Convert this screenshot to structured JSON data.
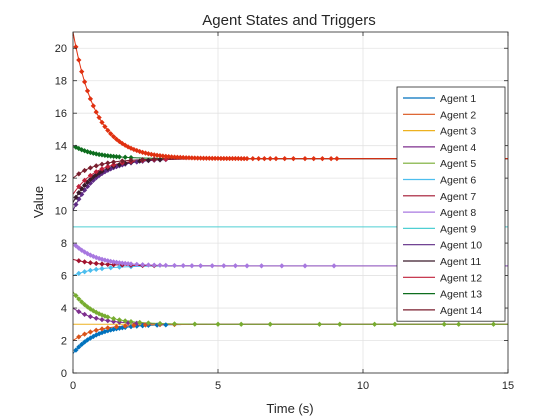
{
  "chart_data": {
    "type": "line",
    "title": "Agent States and Triggers",
    "xlabel": "Time (s)",
    "ylabel": "Value",
    "xlim": [
      0,
      15
    ],
    "ylim": [
      0,
      21
    ],
    "xticks": [
      "0",
      "5",
      "10",
      "15"
    ],
    "xtick_values": [
      0,
      5,
      10,
      15
    ],
    "yticks": [
      "0",
      "2",
      "4",
      "6",
      "8",
      "10",
      "12",
      "14",
      "16",
      "18",
      "20"
    ],
    "ytick_values": [
      0,
      2,
      4,
      6,
      8,
      10,
      12,
      14,
      16,
      18,
      20
    ],
    "grid": true,
    "legend_position": "right",
    "series": [
      {
        "name": "Agent 1",
        "color": "#0072BD",
        "start": 1.2,
        "end": 3.0,
        "tau": 0.8,
        "triggers": [
          0.1,
          0.2,
          0.3,
          0.4,
          0.5,
          0.6,
          0.7,
          0.8,
          0.9,
          1.0,
          1.1,
          1.2,
          1.3,
          1.4,
          1.5,
          1.6,
          1.7,
          1.8,
          2.0,
          2.2,
          2.4,
          2.6,
          2.9,
          3.2
        ]
      },
      {
        "name": "Agent 2",
        "color": "#D95319",
        "start": 2.0,
        "end": 3.0,
        "tau": 0.8,
        "triggers": [
          0.2,
          0.4,
          0.6,
          0.8,
          1.0,
          1.2,
          1.5,
          1.8,
          2.1,
          2.5,
          3.0,
          3.5
        ]
      },
      {
        "name": "Agent 3",
        "color": "#EDB120",
        "start": 3.0,
        "end": 3.0,
        "tau": 0.8,
        "triggers": []
      },
      {
        "name": "Agent 4",
        "color": "#7E2F8E",
        "start": 4.0,
        "end": 3.0,
        "tau": 0.8,
        "triggers": [
          0.2,
          0.4,
          0.6,
          0.8,
          1.0,
          1.2,
          1.4,
          1.6,
          1.9,
          2.2,
          2.6,
          3.0
        ]
      },
      {
        "name": "Agent 5",
        "color": "#77AC30",
        "start": 5.0,
        "end": 3.0,
        "tau": 0.8,
        "triggers": [
          0.1,
          0.2,
          0.3,
          0.4,
          0.5,
          0.6,
          0.7,
          0.8,
          0.9,
          1.0,
          1.1,
          1.2,
          1.4,
          1.6,
          1.8,
          2.0,
          2.3,
          2.6,
          3.0,
          3.5,
          4.2,
          5.0,
          5.8,
          6.8,
          8.5,
          9.2,
          10.4,
          11.1,
          12.8,
          13.3,
          14.5
        ]
      },
      {
        "name": "Agent 6",
        "color": "#4DBEEE",
        "start": 6.0,
        "end": 6.6,
        "tau": 0.8,
        "triggers": [
          0.2,
          0.4,
          0.6,
          0.8,
          1.0,
          1.3,
          1.6,
          2.0
        ]
      },
      {
        "name": "Agent 7",
        "color": "#A2142F",
        "start": 7.0,
        "end": 6.6,
        "tau": 0.8,
        "triggers": [
          0.2,
          0.4,
          0.6,
          0.8,
          1.0,
          1.2,
          1.4,
          1.7,
          2.0,
          2.4,
          2.8
        ]
      },
      {
        "name": "Agent 8",
        "color": "#A878E0",
        "start": 8.0,
        "end": 6.6,
        "tau": 0.8,
        "triggers": [
          0.1,
          0.2,
          0.3,
          0.4,
          0.5,
          0.6,
          0.7,
          0.8,
          0.9,
          1.0,
          1.1,
          1.2,
          1.3,
          1.4,
          1.5,
          1.6,
          1.7,
          1.8,
          1.9,
          2.0,
          2.2,
          2.4,
          2.6,
          2.8,
          3.0,
          3.2,
          3.5,
          3.8,
          4.1,
          4.4,
          4.8,
          5.2,
          5.6,
          6.0,
          6.5,
          7.2,
          8.0,
          9.0
        ]
      },
      {
        "name": "Agent 9",
        "color": "#4FCFD3",
        "start": 9.0,
        "end": 9.0,
        "tau": 0.8,
        "triggers": []
      },
      {
        "name": "Agent 10",
        "color": "#5E2A84",
        "start": 10.0,
        "end": 13.2,
        "tau": 0.8,
        "triggers": [
          0.1,
          0.2,
          0.3,
          0.4,
          0.5,
          0.6,
          0.7,
          0.8,
          0.9,
          1.0,
          1.1,
          1.2,
          1.3,
          1.4,
          1.5,
          1.6,
          1.7,
          1.8,
          2.0,
          2.2,
          2.4,
          2.6,
          2.8,
          3.0,
          3.2
        ]
      },
      {
        "name": "Agent 11",
        "color": "#3A1A2A",
        "start": 10.5,
        "end": 13.2,
        "tau": 0.8,
        "triggers": [
          0.1,
          0.2,
          0.3,
          0.4,
          0.5,
          0.6,
          0.7,
          0.8,
          0.9,
          1.0,
          1.2,
          1.4,
          1.6,
          1.8,
          2.0,
          2.3,
          2.6,
          3.0
        ]
      },
      {
        "name": "Agent 12",
        "color": "#C0203A",
        "start": 11.0,
        "end": 13.2,
        "tau": 0.8,
        "triggers": [
          0.2,
          0.4,
          0.6,
          0.8,
          1.0,
          1.2,
          1.4,
          1.7,
          2.0,
          2.4,
          2.8,
          3.2
        ]
      },
      {
        "name": "Agent 13",
        "color": "#0E6E1E",
        "start": 14.0,
        "end": 13.2,
        "tau": 0.8,
        "triggers": [
          0.1,
          0.2,
          0.3,
          0.4,
          0.5,
          0.6,
          0.7,
          0.8,
          0.9,
          1.0,
          1.1,
          1.2,
          1.3,
          1.4,
          1.5,
          1.6,
          1.8,
          2.0
        ]
      },
      {
        "name": "Agent 14",
        "color": "#7A1E2E",
        "start": 12.0,
        "end": 13.2,
        "tau": 0.8,
        "triggers": [
          0.2,
          0.4,
          0.6,
          0.8,
          1.0,
          1.2,
          1.4,
          1.7,
          2.0,
          2.4,
          2.8
        ]
      },
      {
        "name": "",
        "color": "#E03010",
        "start": 21.0,
        "end": 13.2,
        "tau": 0.8,
        "triggers": [
          0.1,
          0.2,
          0.3,
          0.4,
          0.5,
          0.6,
          0.7,
          0.8,
          0.9,
          1.0,
          1.1,
          1.2,
          1.3,
          1.4,
          1.5,
          1.6,
          1.7,
          1.8,
          1.9,
          2.0,
          2.1,
          2.2,
          2.3,
          2.4,
          2.5,
          2.6,
          2.7,
          2.8,
          2.9,
          3.0,
          3.1,
          3.2,
          3.3,
          3.4,
          3.5,
          3.6,
          3.7,
          3.8,
          3.9,
          4.0,
          4.1,
          4.2,
          4.3,
          4.4,
          4.5,
          4.6,
          4.7,
          4.8,
          4.9,
          5.0,
          5.1,
          5.2,
          5.3,
          5.4,
          5.5,
          5.6,
          5.7,
          5.8,
          5.9,
          6.0,
          6.2,
          6.4,
          6.6,
          6.8,
          7.0,
          7.3,
          7.6,
          8.0,
          8.3,
          8.6,
          8.9,
          9.1
        ]
      }
    ]
  }
}
